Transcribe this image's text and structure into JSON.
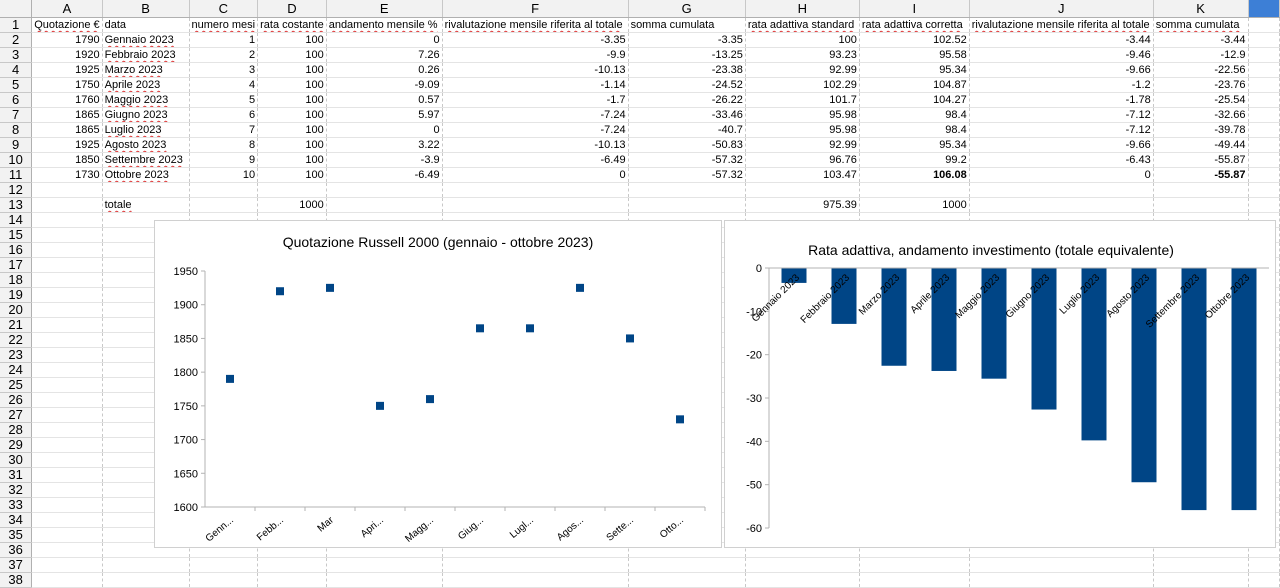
{
  "columns": [
    "A",
    "B",
    "C",
    "D",
    "E",
    "F",
    "G",
    "H",
    "I",
    "J",
    "K",
    ""
  ],
  "rows": [
    [
      "Quotazione €",
      "data",
      "numero mesi",
      "rata costante",
      "andamento mensile %",
      "rivalutazione mensile riferita al totale",
      "somma cumulata",
      "rata adattiva standard",
      "rata adattiva corretta",
      "rivalutazione mensile riferita al totale",
      "somma cumulata"
    ],
    [
      "1790",
      "Gennaio 2023",
      "1",
      "100",
      "0",
      "-3.35",
      "-3.35",
      "100",
      "102.52",
      "-3.44",
      "-3.44"
    ],
    [
      "1920",
      "Febbraio 2023",
      "2",
      "100",
      "7.26",
      "-9.9",
      "-13.25",
      "93.23",
      "95.58",
      "-9.46",
      "-12.9"
    ],
    [
      "1925",
      "Marzo 2023",
      "3",
      "100",
      "0.26",
      "-10.13",
      "-23.38",
      "92.99",
      "95.34",
      "-9.66",
      "-22.56"
    ],
    [
      "1750",
      "Aprile 2023",
      "4",
      "100",
      "-9.09",
      "-1.14",
      "-24.52",
      "102.29",
      "104.87",
      "-1.2",
      "-23.76"
    ],
    [
      "1760",
      "Maggio 2023",
      "5",
      "100",
      "0.57",
      "-1.7",
      "-26.22",
      "101.7",
      "104.27",
      "-1.78",
      "-25.54"
    ],
    [
      "1865",
      "Giugno 2023",
      "6",
      "100",
      "5.97",
      "-7.24",
      "-33.46",
      "95.98",
      "98.4",
      "-7.12",
      "-32.66"
    ],
    [
      "1865",
      "Luglio 2023",
      "7",
      "100",
      "0",
      "-7.24",
      "-40.7",
      "95.98",
      "98.4",
      "-7.12",
      "-39.78"
    ],
    [
      "1925",
      "Agosto 2023",
      "8",
      "100",
      "3.22",
      "-10.13",
      "-50.83",
      "92.99",
      "95.34",
      "-9.66",
      "-49.44"
    ],
    [
      "1850",
      "Settembre 2023",
      "9",
      "100",
      "-3.9",
      "-6.49",
      "-57.32",
      "96.76",
      "99.2",
      "-6.43",
      "-55.87"
    ],
    [
      "1730",
      "Ottobre 2023",
      "10",
      "100",
      "-6.49",
      "0",
      "-57.32",
      "103.47",
      "106.08",
      "0",
      "-55.87"
    ],
    [
      "",
      "",
      "",
      "",
      "",
      "",
      "",
      "",
      "",
      "",
      ""
    ],
    [
      "",
      "totale",
      "",
      "1000",
      "",
      "",
      "",
      "975.39",
      "1000",
      "",
      ""
    ]
  ],
  "chart_data": [
    {
      "type": "scatter",
      "title": "Quotazione Russell 2000 (gennaio - ottobre 2023)",
      "categories": [
        "Genn...",
        "Febb...",
        "Mar",
        "Apri...",
        "Magg...",
        "Giug...",
        "Lugl...",
        "Agos...",
        "Sette...",
        "Otto..."
      ],
      "series": [
        {
          "values": [
            1790,
            1920,
            1925,
            1750,
            1760,
            1865,
            1865,
            1925,
            1850,
            1730
          ]
        }
      ],
      "ylim": [
        1600,
        1950
      ],
      "yticks": [
        1600,
        1650,
        1700,
        1750,
        1800,
        1850,
        1900,
        1950
      ],
      "color": "#004586"
    },
    {
      "type": "bar",
      "title": "Rata adattiva, andamento investimento (totale equivalente)",
      "categories": [
        "Gennaio 2023",
        "Febbraio 2023",
        "Marzo 2023",
        "Aprile 2023",
        "Maggio 2023",
        "Giugno 2023",
        "Luglio 2023",
        "Agosto 2023",
        "Settembre 2023",
        "Ottobre 2023"
      ],
      "series": [
        {
          "values": [
            -3.44,
            -12.9,
            -22.56,
            -23.76,
            -25.54,
            -32.66,
            -39.78,
            -49.44,
            -55.87,
            -55.87
          ]
        }
      ],
      "ylim": [
        -60,
        0
      ],
      "yticks": [
        0,
        -10,
        -20,
        -30,
        -40,
        -50,
        -60
      ],
      "color": "#004586"
    }
  ]
}
